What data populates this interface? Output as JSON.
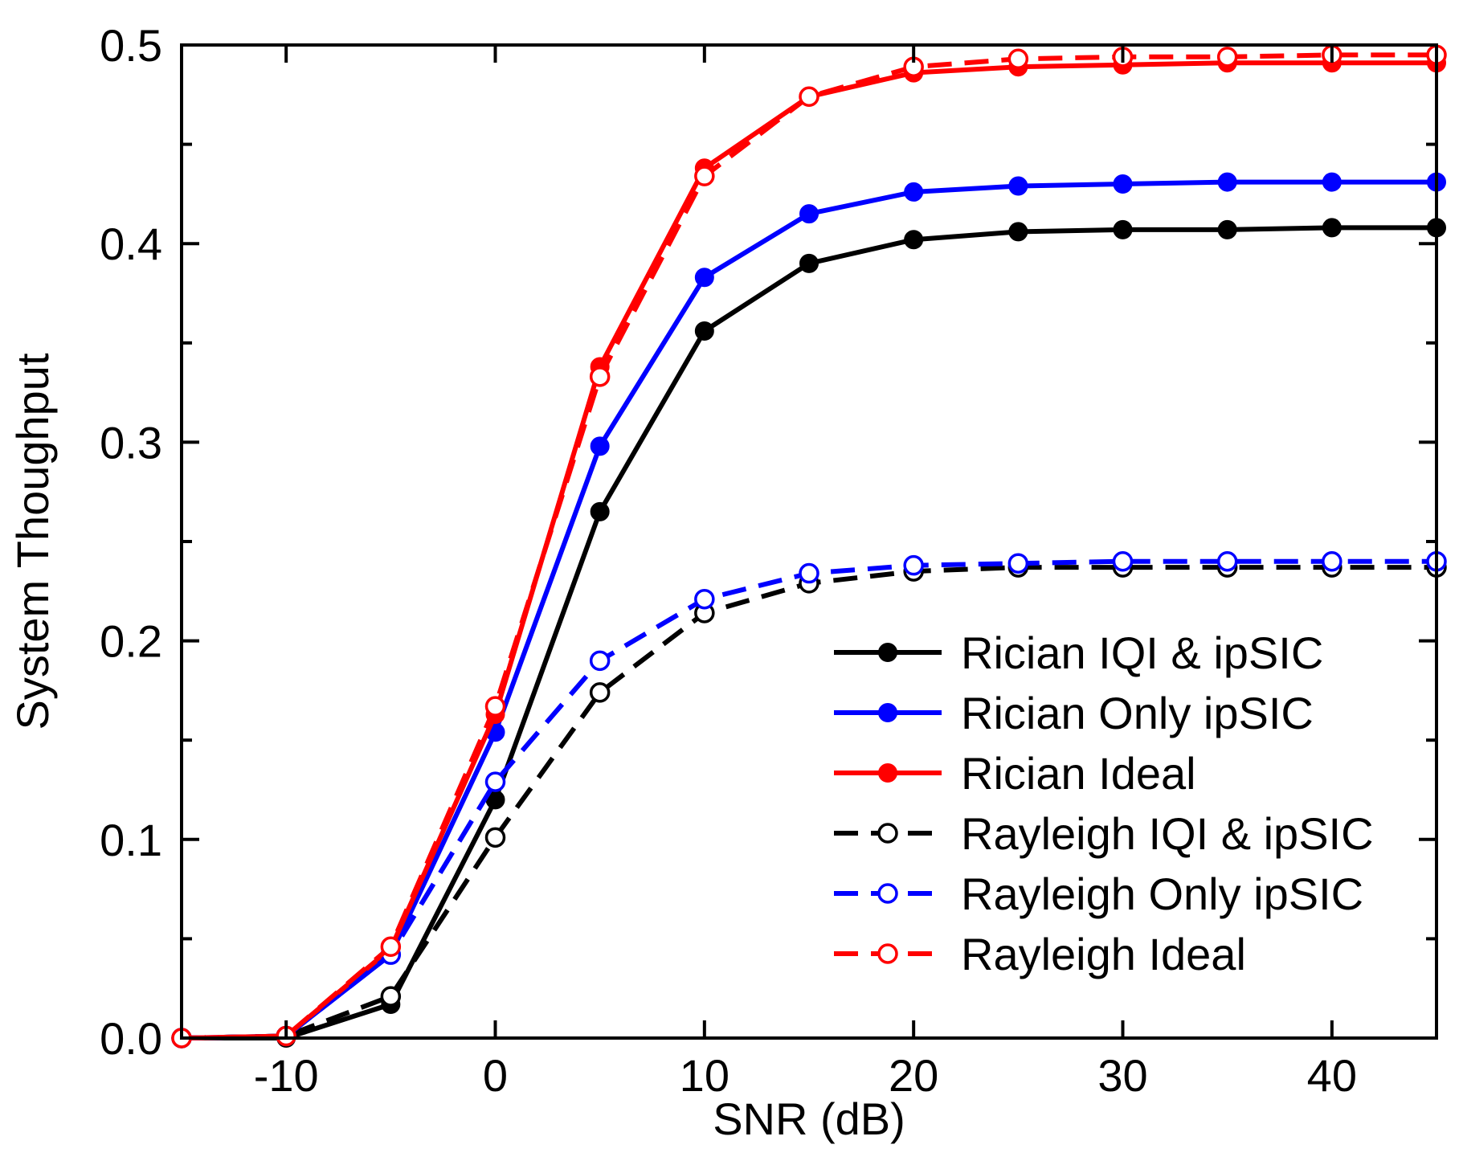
{
  "chart_data": {
    "type": "line",
    "title": "",
    "xlabel": "SNR (dB)",
    "ylabel": "System Thoughput",
    "xlim": [
      -15,
      45
    ],
    "ylim": [
      0.0,
      0.5
    ],
    "xticks": [
      -10,
      0,
      10,
      20,
      30,
      40
    ],
    "xtick_labels": [
      "-10",
      "0",
      "10",
      "20",
      "30",
      "40"
    ],
    "yticks": [
      0.0,
      0.1,
      0.2,
      0.3,
      0.4,
      0.5
    ],
    "ytick_labels": [
      "0.0",
      "0.1",
      "0.2",
      "0.3",
      "0.4",
      "0.5"
    ],
    "grid": false,
    "legend_position": "center-right",
    "x": [
      -15,
      -10,
      -5,
      0,
      5,
      10,
      15,
      20,
      25,
      30,
      35,
      40,
      45
    ],
    "series": [
      {
        "name": "Rician IQI & ipSIC",
        "color": "#000000",
        "dash": "solid",
        "marker": "filled",
        "values": [
          0.0,
          0.0,
          0.017,
          0.12,
          0.265,
          0.356,
          0.39,
          0.402,
          0.406,
          0.407,
          0.407,
          0.408,
          0.408
        ]
      },
      {
        "name": "Rician Only ipSIC",
        "color": "#0000ff",
        "dash": "solid",
        "marker": "filled",
        "values": [
          0.0,
          0.001,
          0.042,
          0.154,
          0.298,
          0.383,
          0.415,
          0.426,
          0.429,
          0.43,
          0.431,
          0.431,
          0.431
        ]
      },
      {
        "name": "Rician Ideal",
        "color": "#ff0000",
        "dash": "solid",
        "marker": "filled",
        "values": [
          0.0,
          0.001,
          0.045,
          0.163,
          0.338,
          0.438,
          0.474,
          0.486,
          0.489,
          0.49,
          0.491,
          0.491,
          0.491
        ]
      },
      {
        "name": "Rayleigh IQI & ipSIC",
        "color": "#000000",
        "dash": "dashed",
        "marker": "open",
        "values": [
          0.0,
          0.001,
          0.021,
          0.101,
          0.174,
          0.214,
          0.229,
          0.235,
          0.237,
          0.237,
          0.237,
          0.237,
          0.237
        ]
      },
      {
        "name": "Rayleigh Only ipSIC",
        "color": "#0000ff",
        "dash": "dashed",
        "marker": "open",
        "values": [
          0.0,
          0.001,
          0.042,
          0.129,
          0.19,
          0.221,
          0.234,
          0.238,
          0.239,
          0.24,
          0.24,
          0.24,
          0.24
        ]
      },
      {
        "name": "Rayleigh Ideal",
        "color": "#ff0000",
        "dash": "dashed",
        "marker": "open",
        "values": [
          0.0,
          0.001,
          0.046,
          0.167,
          0.333,
          0.434,
          0.474,
          0.489,
          0.493,
          0.494,
          0.494,
          0.495,
          0.495
        ]
      }
    ]
  }
}
